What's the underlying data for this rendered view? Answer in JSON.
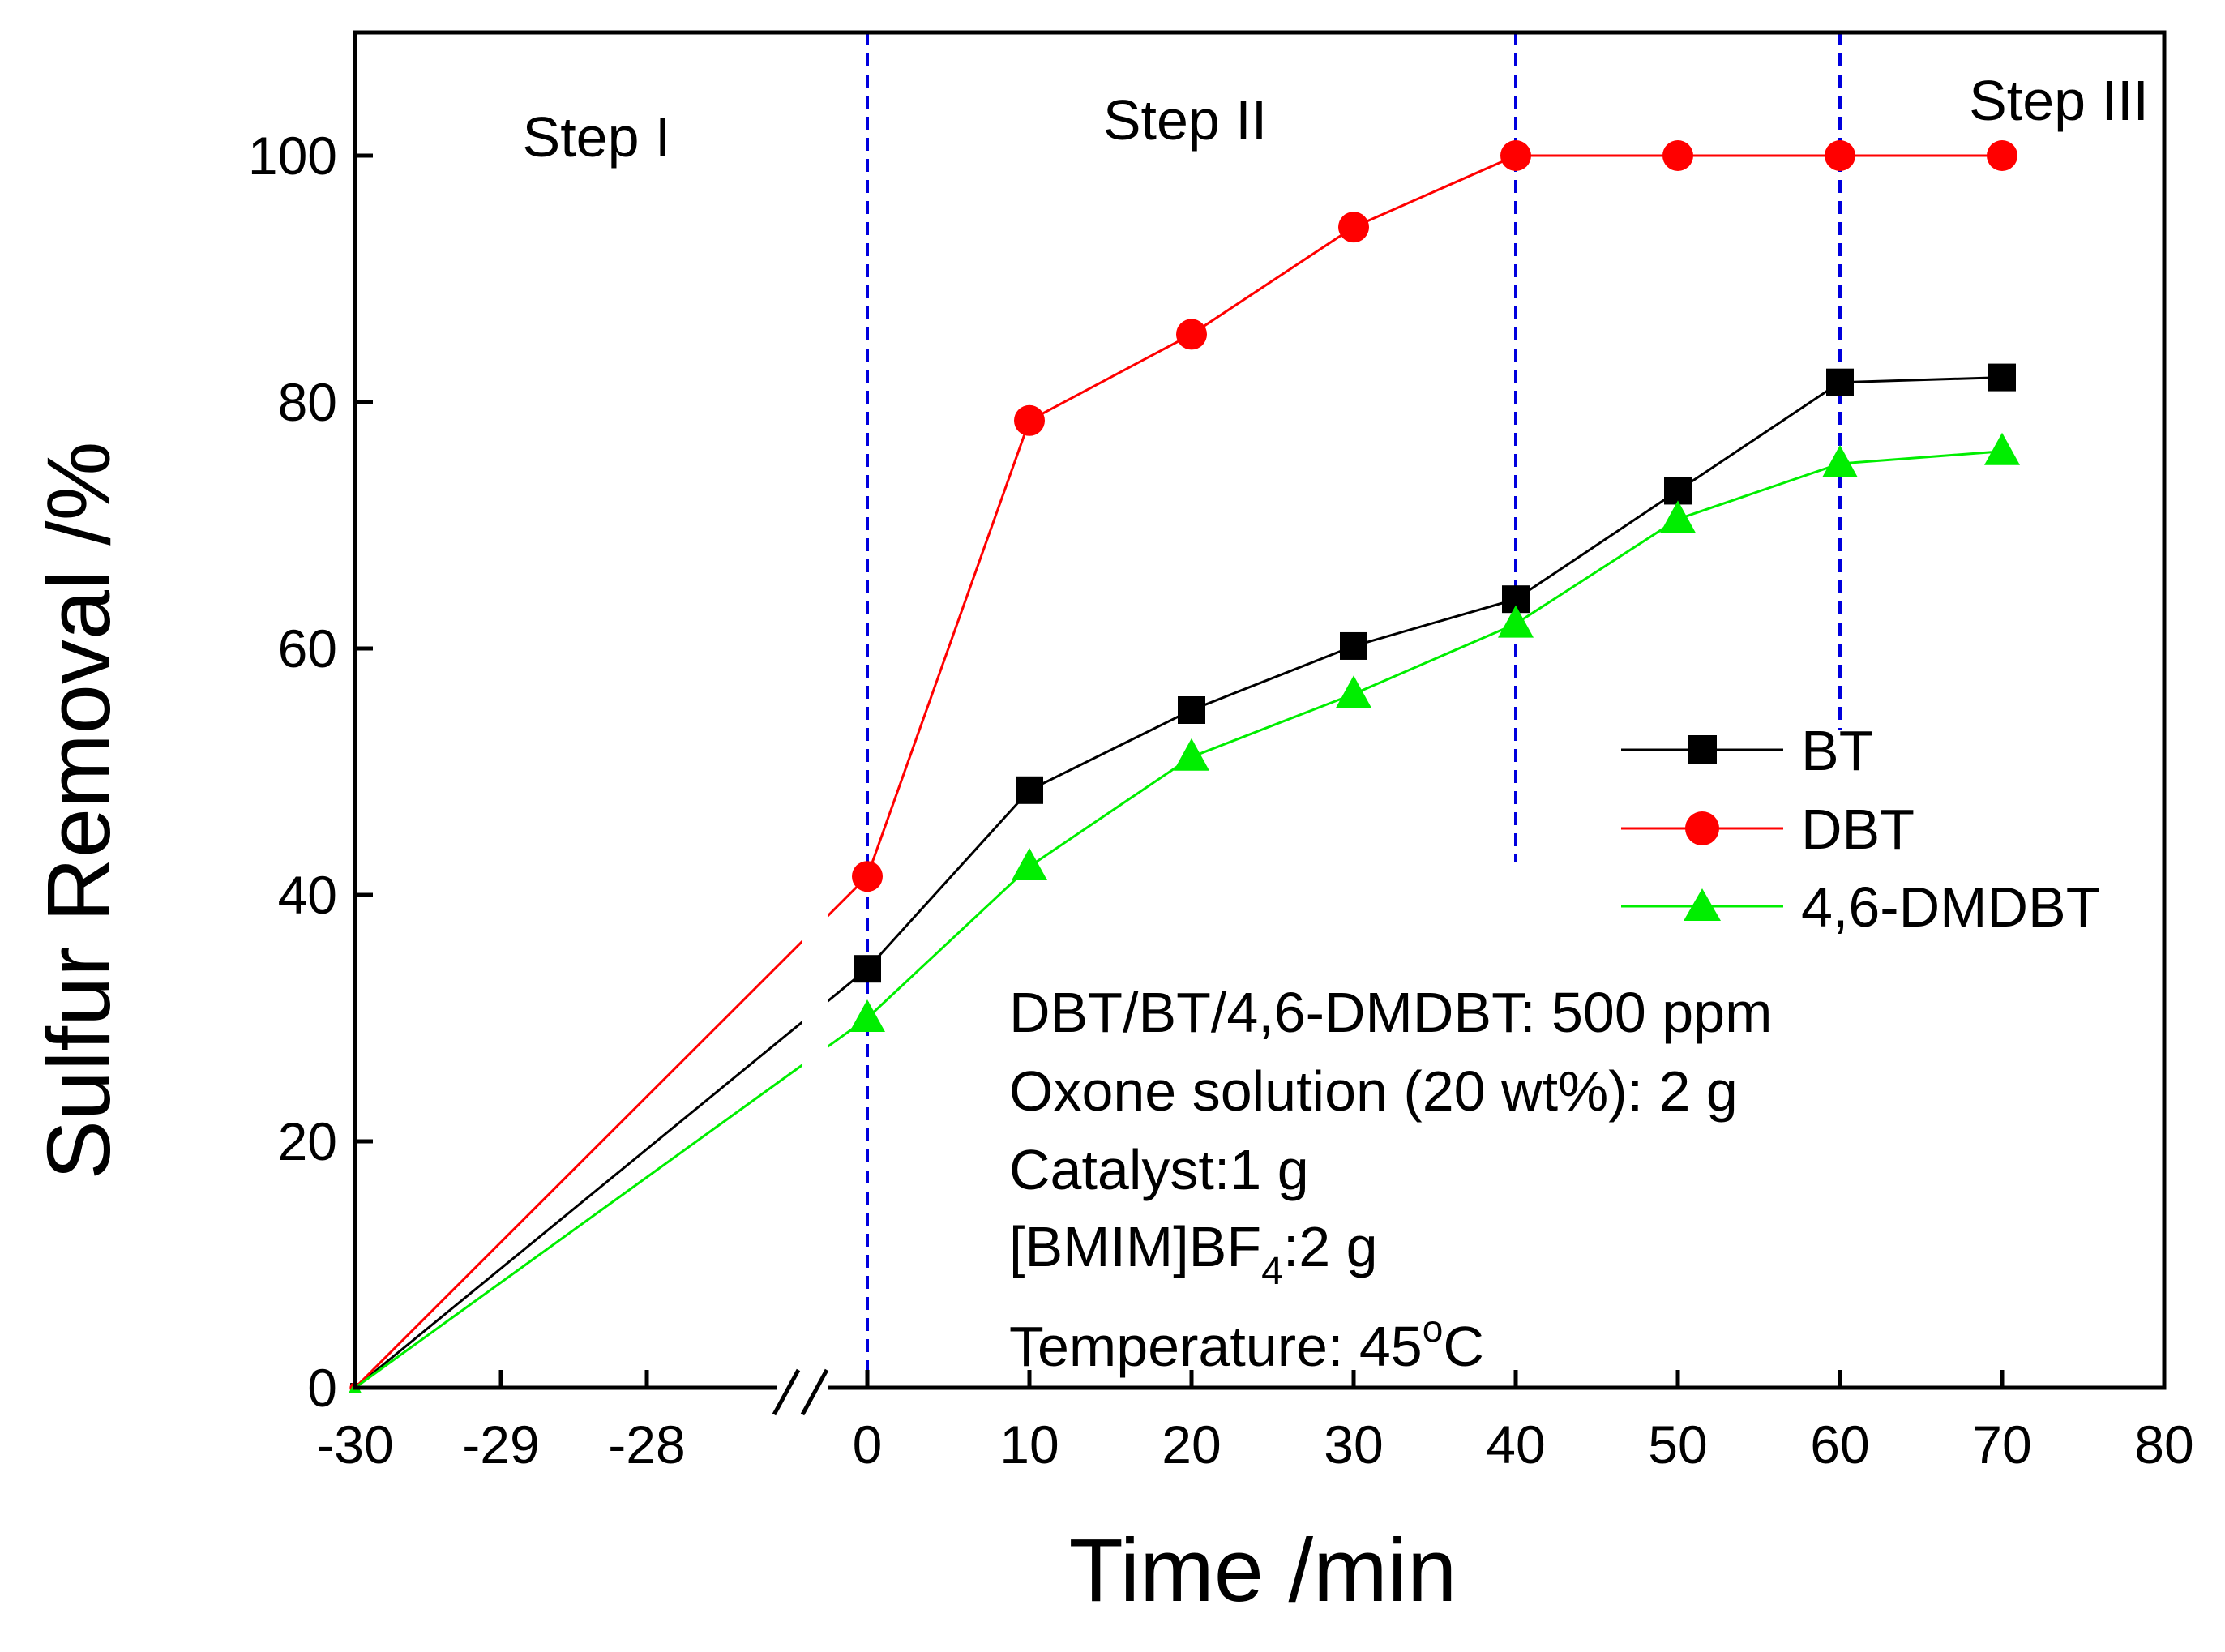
{
  "chart_data": {
    "type": "line",
    "xlabel": "Time /min",
    "ylabel": "Sulfur Removal /%",
    "ylim": [
      0,
      110
    ],
    "yticks": [
      0,
      20,
      40,
      60,
      80,
      100
    ],
    "x_axis_broken": true,
    "x_segments": [
      {
        "range": [
          -30,
          -27
        ],
        "ticks": [
          -30,
          -29,
          -28
        ]
      },
      {
        "range": [
          0,
          80
        ],
        "ticks": [
          0,
          10,
          20,
          30,
          40,
          50,
          60,
          70,
          80
        ]
      }
    ],
    "vertical_dashed_lines": [
      0,
      40,
      60
    ],
    "step_labels": [
      "Step I",
      "Step II",
      "Step III"
    ],
    "series": [
      {
        "name": "BT",
        "color": "#000000",
        "marker": "square",
        "x": [
          -30,
          0,
          10,
          20,
          30,
          40,
          50,
          60,
          70
        ],
        "y": [
          0,
          34,
          48.5,
          55,
          60.2,
          64,
          72.8,
          81.6,
          82
        ]
      },
      {
        "name": "DBT",
        "color": "#ff0000",
        "marker": "circle",
        "x": [
          -30,
          0,
          10,
          20,
          30,
          40,
          50,
          60,
          70
        ],
        "y": [
          0,
          41.5,
          78.5,
          85.5,
          94.2,
          100,
          100,
          100,
          100
        ]
      },
      {
        "name": "4,6-DMDBT",
        "color": "#00ee00",
        "marker": "triangle",
        "x": [
          -30,
          0,
          10,
          20,
          30,
          40,
          50,
          60,
          70
        ],
        "y": [
          0,
          30,
          42.3,
          51.2,
          56.3,
          62,
          70.5,
          75,
          76
        ]
      }
    ],
    "legend_position": "right",
    "annotations": {
      "line1": "DBT/BT/4,6-DMDBT: 500 ppm",
      "line2": "Oxone solution (20 wt%): 2 g",
      "line3": "Catalyst:1 g",
      "line4_pre": "[BMIM]BF",
      "line4_sub": "4",
      "line4_post": ":2 g",
      "line5_pre": "Temperature: 45",
      "line5_sup": "o",
      "line5_post": "C"
    }
  }
}
